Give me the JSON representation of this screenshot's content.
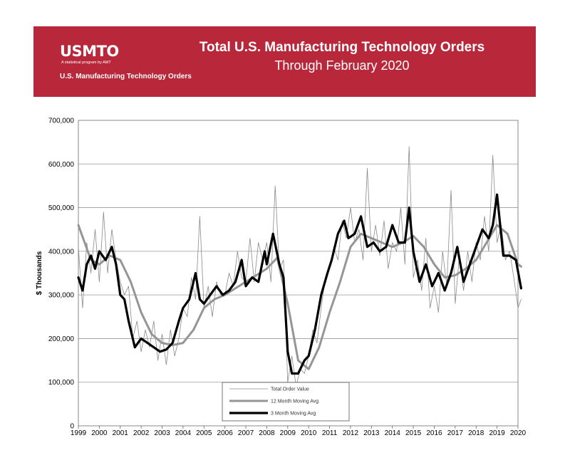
{
  "header": {
    "logo_text": "USMTO",
    "logo_tagline": "A statistical program by AMT",
    "logo_subtitle": "U.S. Manufacturing Technology Orders",
    "title": "Total U.S. Manufacturing Technology Orders",
    "subtitle": "Through February 2020",
    "banner_color": "#b8283a"
  },
  "chart_data": {
    "type": "line",
    "title": "Total U.S. Manufacturing Technology Orders",
    "subtitle": "Through February 2020",
    "xlabel": "",
    "ylabel": "$ Thousands",
    "ylim": [
      0,
      700000
    ],
    "xlim": [
      1999,
      2020
    ],
    "grid": true,
    "legend_position": "bottom-center",
    "y_ticks": [
      {
        "value": 0,
        "label": "0"
      },
      {
        "value": 100000,
        "label": "100,000"
      },
      {
        "value": 200000,
        "label": "200,000"
      },
      {
        "value": 300000,
        "label": "300,000"
      },
      {
        "value": 400000,
        "label": "400,000"
      },
      {
        "value": 500000,
        "label": "500,000"
      },
      {
        "value": 600000,
        "label": "600,000"
      },
      {
        "value": 700000,
        "label": "700,000"
      }
    ],
    "x_ticks": [
      {
        "value": 1999,
        "label": "1999"
      },
      {
        "value": 2000,
        "label": "2000"
      },
      {
        "value": 2001,
        "label": "2001"
      },
      {
        "value": 2002,
        "label": "2002"
      },
      {
        "value": 2003,
        "label": "2003"
      },
      {
        "value": 2004,
        "label": "2004"
      },
      {
        "value": 2005,
        "label": "2005"
      },
      {
        "value": 2006,
        "label": "2006"
      },
      {
        "value": 2007,
        "label": "2007"
      },
      {
        "value": 2008,
        "label": "2008"
      },
      {
        "value": 2009,
        "label": "2009"
      },
      {
        "value": 2010,
        "label": "2010"
      },
      {
        "value": 2011,
        "label": "2011"
      },
      {
        "value": 2012,
        "label": "2012"
      },
      {
        "value": 2013,
        "label": "2013"
      },
      {
        "value": 2014,
        "label": "2014"
      },
      {
        "value": 2015,
        "label": "2015"
      },
      {
        "value": 2016,
        "label": "2016"
      },
      {
        "value": 2017,
        "label": "2017"
      },
      {
        "value": 2018,
        "label": "2018"
      },
      {
        "value": 2019,
        "label": "2019"
      },
      {
        "value": 2020,
        "label": "2020"
      }
    ],
    "series": [
      {
        "name": "Total Order Value",
        "color": "#8a8a8a",
        "style": "thin",
        "x": [
          1999.0,
          1999.2,
          1999.4,
          1999.6,
          1999.8,
          2000.0,
          2000.2,
          2000.4,
          2000.6,
          2000.8,
          2001.0,
          2001.2,
          2001.4,
          2001.6,
          2001.8,
          2002.0,
          2002.2,
          2002.4,
          2002.6,
          2002.8,
          2003.0,
          2003.2,
          2003.4,
          2003.6,
          2003.8,
          2004.0,
          2004.2,
          2004.4,
          2004.6,
          2004.8,
          2005.0,
          2005.2,
          2005.4,
          2005.6,
          2005.8,
          2006.0,
          2006.2,
          2006.4,
          2006.6,
          2006.8,
          2007.0,
          2007.2,
          2007.4,
          2007.6,
          2007.8,
          2008.0,
          2008.2,
          2008.4,
          2008.6,
          2008.8,
          2009.0,
          2009.2,
          2009.4,
          2009.6,
          2009.8,
          2010.0,
          2010.2,
          2010.4,
          2010.6,
          2010.8,
          2011.0,
          2011.2,
          2011.4,
          2011.6,
          2011.8,
          2012.0,
          2012.2,
          2012.4,
          2012.6,
          2012.8,
          2013.0,
          2013.2,
          2013.4,
          2013.6,
          2013.8,
          2014.0,
          2014.2,
          2014.4,
          2014.6,
          2014.8,
          2015.0,
          2015.2,
          2015.4,
          2015.6,
          2015.8,
          2016.0,
          2016.2,
          2016.4,
          2016.6,
          2016.8,
          2017.0,
          2017.2,
          2017.4,
          2017.6,
          2017.8,
          2018.0,
          2018.2,
          2018.4,
          2018.6,
          2018.8,
          2019.0,
          2019.2,
          2019.4,
          2019.6,
          2019.8,
          2020.0,
          2020.15
        ],
        "values": [
          410000,
          270000,
          420000,
          350000,
          450000,
          330000,
          490000,
          350000,
          450000,
          380000,
          330000,
          300000,
          320000,
          200000,
          240000,
          170000,
          220000,
          180000,
          240000,
          150000,
          210000,
          140000,
          220000,
          160000,
          200000,
          270000,
          250000,
          340000,
          290000,
          480000,
          270000,
          320000,
          250000,
          330000,
          300000,
          300000,
          350000,
          320000,
          400000,
          340000,
          330000,
          430000,
          330000,
          420000,
          380000,
          420000,
          330000,
          550000,
          360000,
          380000,
          100000,
          160000,
          90000,
          130000,
          120000,
          160000,
          220000,
          190000,
          270000,
          340000,
          360000,
          410000,
          380000,
          470000,
          430000,
          500000,
          420000,
          450000,
          380000,
          590000,
          400000,
          460000,
          390000,
          470000,
          360000,
          420000,
          400000,
          500000,
          370000,
          640000,
          340000,
          380000,
          310000,
          430000,
          270000,
          320000,
          260000,
          400000,
          320000,
          540000,
          280000,
          390000,
          310000,
          400000,
          330000,
          420000,
          380000,
          480000,
          400000,
          620000,
          420000,
          460000,
          380000,
          400000,
          340000,
          270000,
          290000
        ]
      },
      {
        "name": "12 Month Moving Avg",
        "color": "#959595",
        "style": "medium",
        "x": [
          1999.0,
          1999.3,
          1999.6,
          2000.0,
          2000.5,
          2001.0,
          2001.5,
          2002.0,
          2002.5,
          2003.0,
          2003.5,
          2004.0,
          2004.5,
          2005.0,
          2005.5,
          2006.0,
          2006.5,
          2007.0,
          2007.5,
          2008.0,
          2008.5,
          2009.0,
          2009.5,
          2010.0,
          2010.5,
          2011.0,
          2011.5,
          2012.0,
          2012.5,
          2013.0,
          2013.5,
          2014.0,
          2014.5,
          2015.0,
          2015.5,
          2016.0,
          2016.5,
          2017.0,
          2017.5,
          2018.0,
          2018.5,
          2019.0,
          2019.5,
          2020.0,
          2020.15
        ],
        "values": [
          460000,
          420000,
          380000,
          370000,
          390000,
          380000,
          330000,
          260000,
          210000,
          190000,
          185000,
          190000,
          220000,
          270000,
          290000,
          300000,
          315000,
          330000,
          345000,
          360000,
          385000,
          280000,
          150000,
          130000,
          180000,
          260000,
          330000,
          410000,
          440000,
          430000,
          420000,
          410000,
          420000,
          435000,
          410000,
          370000,
          340000,
          345000,
          360000,
          380000,
          420000,
          460000,
          440000,
          370000,
          365000
        ]
      },
      {
        "name": "3 Month Moving Avg",
        "color": "#000000",
        "style": "thick",
        "x": [
          1999.0,
          1999.2,
          1999.4,
          1999.6,
          1999.8,
          2000.0,
          2000.3,
          2000.6,
          2000.8,
          2001.0,
          2001.2,
          2001.4,
          2001.7,
          2002.0,
          2002.3,
          2002.6,
          2002.9,
          2003.2,
          2003.5,
          2003.8,
          2004.0,
          2004.3,
          2004.6,
          2004.8,
          2005.0,
          2005.3,
          2005.6,
          2005.9,
          2006.2,
          2006.5,
          2006.8,
          2007.0,
          2007.3,
          2007.6,
          2007.9,
          2008.0,
          2008.3,
          2008.6,
          2008.8,
          2009.0,
          2009.2,
          2009.5,
          2009.8,
          2010.0,
          2010.3,
          2010.6,
          2010.9,
          2011.1,
          2011.4,
          2011.7,
          2011.9,
          2012.2,
          2012.5,
          2012.8,
          2013.1,
          2013.4,
          2013.7,
          2014.0,
          2014.3,
          2014.6,
          2014.8,
          2015.0,
          2015.3,
          2015.6,
          2015.9,
          2016.2,
          2016.5,
          2016.8,
          2017.1,
          2017.4,
          2017.7,
          2018.0,
          2018.3,
          2018.6,
          2018.8,
          2019.0,
          2019.3,
          2019.6,
          2019.9,
          2020.15
        ],
        "values": [
          340000,
          310000,
          370000,
          390000,
          360000,
          400000,
          380000,
          410000,
          370000,
          300000,
          290000,
          240000,
          180000,
          200000,
          190000,
          180000,
          170000,
          175000,
          190000,
          240000,
          270000,
          290000,
          350000,
          290000,
          280000,
          300000,
          320000,
          300000,
          310000,
          330000,
          380000,
          320000,
          340000,
          330000,
          400000,
          370000,
          440000,
          370000,
          340000,
          170000,
          120000,
          120000,
          150000,
          160000,
          220000,
          300000,
          350000,
          380000,
          440000,
          470000,
          430000,
          440000,
          480000,
          410000,
          420000,
          400000,
          410000,
          460000,
          420000,
          420000,
          500000,
          400000,
          330000,
          370000,
          320000,
          350000,
          310000,
          350000,
          410000,
          330000,
          370000,
          410000,
          450000,
          430000,
          460000,
          530000,
          390000,
          390000,
          380000,
          315000
        ]
      }
    ]
  }
}
